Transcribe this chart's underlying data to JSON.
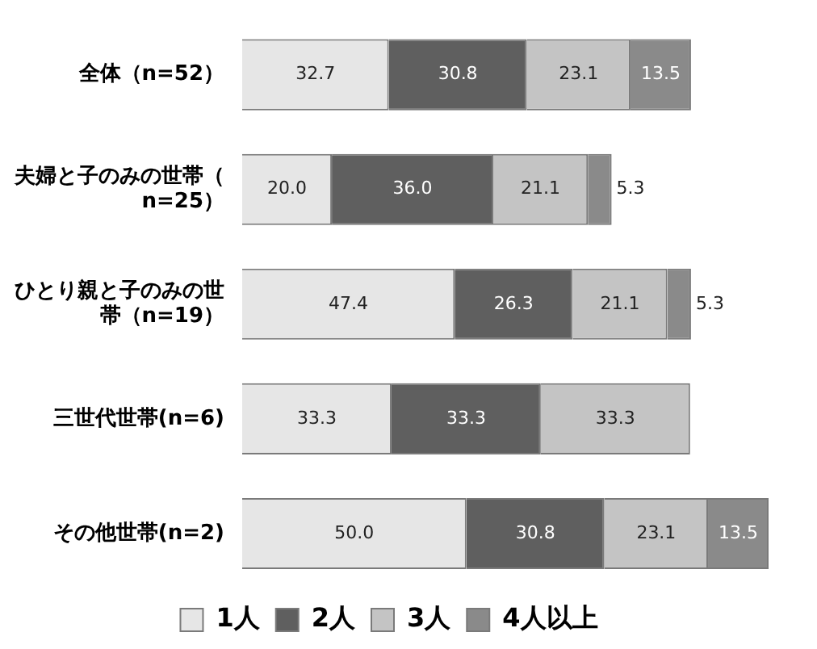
{
  "chart_data": {
    "type": "bar",
    "orientation": "horizontal",
    "stacked": true,
    "legend": "bottom",
    "tick_labels": "y",
    "categories": [
      "全体（n=52）",
      "夫婦と子のみの世帯（n=25）",
      "ひとり親と子のみの世帯（n=19）",
      "三世代世帯(n=6)",
      "その他世帯(n=2)"
    ],
    "series": [
      {
        "name": "1人",
        "color": "#e6e6e6",
        "values": [
          32.7,
          20.0,
          47.4,
          33.3,
          50.0
        ],
        "value_labels": [
          "32.7",
          "20.0",
          "47.4",
          "33.3",
          "50.0"
        ]
      },
      {
        "name": "2人",
        "color": "#5f5f5f",
        "values": [
          30.8,
          36.0,
          26.3,
          33.3,
          30.8
        ],
        "value_labels": [
          "30.8",
          "36.0",
          "26.3",
          "33.3",
          "30.8"
        ]
      },
      {
        "name": "3人",
        "color": "#c4c4c4",
        "values": [
          23.1,
          21.1,
          21.1,
          33.3,
          23.1
        ],
        "value_labels": [
          "23.1",
          "21.1",
          "21.1",
          "33.3",
          "23.1"
        ]
      },
      {
        "name": "4人以上",
        "color": "#8a8a8a",
        "values": [
          13.5,
          5.3,
          5.3,
          null,
          13.5
        ],
        "value_labels": [
          "13.5",
          "5.3",
          "5.3",
          null,
          "13.5"
        ]
      }
    ]
  }
}
